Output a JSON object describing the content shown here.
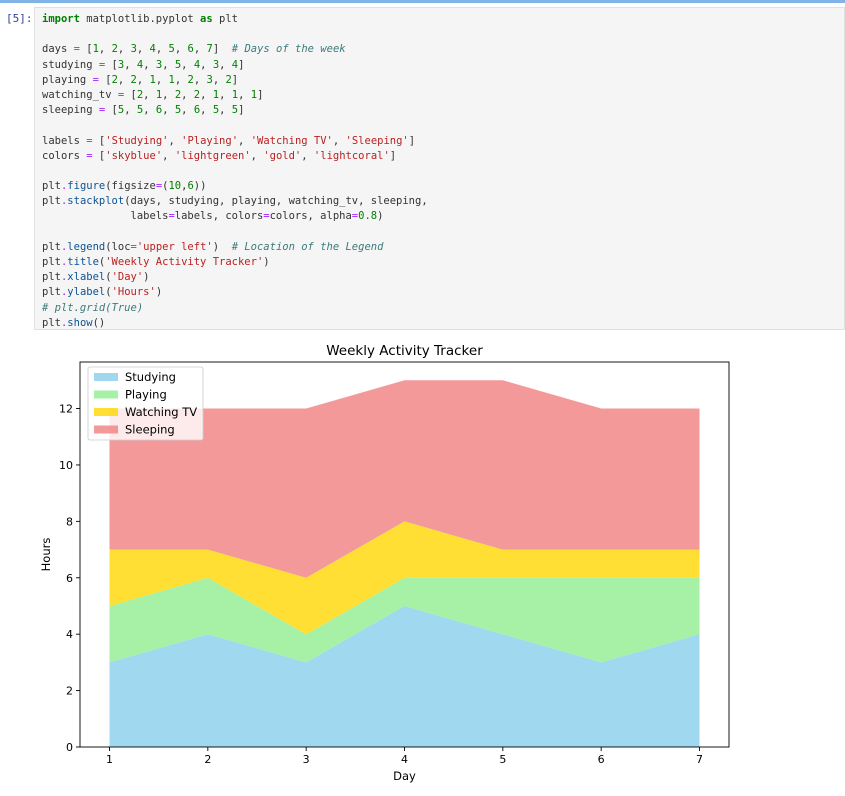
{
  "cell": {
    "prompt": "[5]:",
    "code_lines": [
      [
        [
          "kw",
          "import"
        ],
        [
          "t",
          " matplotlib.pyplot "
        ],
        [
          "kw",
          "as"
        ],
        [
          "t",
          " plt"
        ]
      ],
      [],
      [
        [
          "t",
          "days "
        ],
        [
          "op",
          "="
        ],
        [
          "t",
          " ["
        ],
        [
          "num",
          "1"
        ],
        [
          "t",
          ", "
        ],
        [
          "num",
          "2"
        ],
        [
          "t",
          ", "
        ],
        [
          "num",
          "3"
        ],
        [
          "t",
          ", "
        ],
        [
          "num",
          "4"
        ],
        [
          "t",
          ", "
        ],
        [
          "num",
          "5"
        ],
        [
          "t",
          ", "
        ],
        [
          "num",
          "6"
        ],
        [
          "t",
          ", "
        ],
        [
          "num",
          "7"
        ],
        [
          "t",
          "]  "
        ],
        [
          "cm",
          "# Days of the week"
        ]
      ],
      [
        [
          "t",
          "studying "
        ],
        [
          "op",
          "="
        ],
        [
          "t",
          " ["
        ],
        [
          "num",
          "3"
        ],
        [
          "t",
          ", "
        ],
        [
          "num",
          "4"
        ],
        [
          "t",
          ", "
        ],
        [
          "num",
          "3"
        ],
        [
          "t",
          ", "
        ],
        [
          "num",
          "5"
        ],
        [
          "t",
          ", "
        ],
        [
          "num",
          "4"
        ],
        [
          "t",
          ", "
        ],
        [
          "num",
          "3"
        ],
        [
          "t",
          ", "
        ],
        [
          "num",
          "4"
        ],
        [
          "t",
          "]"
        ]
      ],
      [
        [
          "t",
          "playing "
        ],
        [
          "op",
          "="
        ],
        [
          "t",
          " ["
        ],
        [
          "num",
          "2"
        ],
        [
          "t",
          ", "
        ],
        [
          "num",
          "2"
        ],
        [
          "t",
          ", "
        ],
        [
          "num",
          "1"
        ],
        [
          "t",
          ", "
        ],
        [
          "num",
          "1"
        ],
        [
          "t",
          ", "
        ],
        [
          "num",
          "2"
        ],
        [
          "t",
          ", "
        ],
        [
          "num",
          "3"
        ],
        [
          "t",
          ", "
        ],
        [
          "num",
          "2"
        ],
        [
          "t",
          "]"
        ]
      ],
      [
        [
          "t",
          "watching_tv "
        ],
        [
          "op",
          "="
        ],
        [
          "t",
          " ["
        ],
        [
          "num",
          "2"
        ],
        [
          "t",
          ", "
        ],
        [
          "num",
          "1"
        ],
        [
          "t",
          ", "
        ],
        [
          "num",
          "2"
        ],
        [
          "t",
          ", "
        ],
        [
          "num",
          "2"
        ],
        [
          "t",
          ", "
        ],
        [
          "num",
          "1"
        ],
        [
          "t",
          ", "
        ],
        [
          "num",
          "1"
        ],
        [
          "t",
          ", "
        ],
        [
          "num",
          "1"
        ],
        [
          "t",
          "]"
        ]
      ],
      [
        [
          "t",
          "sleeping "
        ],
        [
          "op",
          "="
        ],
        [
          "t",
          " ["
        ],
        [
          "num",
          "5"
        ],
        [
          "t",
          ", "
        ],
        [
          "num",
          "5"
        ],
        [
          "t",
          ", "
        ],
        [
          "num",
          "6"
        ],
        [
          "t",
          ", "
        ],
        [
          "num",
          "5"
        ],
        [
          "t",
          ", "
        ],
        [
          "num",
          "6"
        ],
        [
          "t",
          ", "
        ],
        [
          "num",
          "5"
        ],
        [
          "t",
          ", "
        ],
        [
          "num",
          "5"
        ],
        [
          "t",
          "]"
        ]
      ],
      [],
      [
        [
          "t",
          "labels "
        ],
        [
          "op",
          "="
        ],
        [
          "t",
          " ["
        ],
        [
          "str",
          "'Studying'"
        ],
        [
          "t",
          ", "
        ],
        [
          "str",
          "'Playing'"
        ],
        [
          "t",
          ", "
        ],
        [
          "str",
          "'Watching TV'"
        ],
        [
          "t",
          ", "
        ],
        [
          "str",
          "'Sleeping'"
        ],
        [
          "t",
          "]"
        ]
      ],
      [
        [
          "t",
          "colors "
        ],
        [
          "op",
          "="
        ],
        [
          "t",
          " ["
        ],
        [
          "str",
          "'skyblue'"
        ],
        [
          "t",
          ", "
        ],
        [
          "str",
          "'lightgreen'"
        ],
        [
          "t",
          ", "
        ],
        [
          "str",
          "'gold'"
        ],
        [
          "t",
          ", "
        ],
        [
          "str",
          "'lightcoral'"
        ],
        [
          "t",
          "]"
        ]
      ],
      [],
      [
        [
          "t",
          "plt"
        ],
        [
          "op",
          "."
        ],
        [
          "fn",
          "figure"
        ],
        [
          "t",
          "(figsize"
        ],
        [
          "op",
          "="
        ],
        [
          "t",
          "("
        ],
        [
          "num",
          "10"
        ],
        [
          "t",
          ","
        ],
        [
          "num",
          "6"
        ],
        [
          "t",
          "))"
        ]
      ],
      [
        [
          "t",
          "plt"
        ],
        [
          "op",
          "."
        ],
        [
          "fn",
          "stackplot"
        ],
        [
          "t",
          "(days, studying, playing, watching_tv, sleeping,"
        ]
      ],
      [
        [
          "t",
          "              labels"
        ],
        [
          "op",
          "="
        ],
        [
          "t",
          "labels, colors"
        ],
        [
          "op",
          "="
        ],
        [
          "t",
          "colors, alpha"
        ],
        [
          "op",
          "="
        ],
        [
          "num",
          "0.8"
        ],
        [
          "t",
          ")"
        ]
      ],
      [],
      [
        [
          "t",
          "plt"
        ],
        [
          "op",
          "."
        ],
        [
          "fn",
          "legend"
        ],
        [
          "t",
          "(loc"
        ],
        [
          "op",
          "="
        ],
        [
          "str",
          "'upper left'"
        ],
        [
          "t",
          ")  "
        ],
        [
          "cm",
          "# Location of the Legend"
        ]
      ],
      [
        [
          "t",
          "plt"
        ],
        [
          "op",
          "."
        ],
        [
          "fn",
          "title"
        ],
        [
          "t",
          "("
        ],
        [
          "str",
          "'Weekly Activity Tracker'"
        ],
        [
          "t",
          ")"
        ]
      ],
      [
        [
          "t",
          "plt"
        ],
        [
          "op",
          "."
        ],
        [
          "fn",
          "xlabel"
        ],
        [
          "t",
          "("
        ],
        [
          "str",
          "'Day'"
        ],
        [
          "t",
          ")"
        ]
      ],
      [
        [
          "t",
          "plt"
        ],
        [
          "op",
          "."
        ],
        [
          "fn",
          "ylabel"
        ],
        [
          "t",
          "("
        ],
        [
          "str",
          "'Hours'"
        ],
        [
          "t",
          ")"
        ]
      ],
      [
        [
          "cm",
          "# plt.grid(True)"
        ]
      ],
      [
        [
          "t",
          "plt"
        ],
        [
          "op",
          "."
        ],
        [
          "fn",
          "show"
        ],
        [
          "t",
          "()"
        ]
      ]
    ]
  },
  "chart_data": {
    "type": "area",
    "stacked": true,
    "title": "Weekly Activity Tracker",
    "xlabel": "Day",
    "ylabel": "Hours",
    "x": [
      1,
      2,
      3,
      4,
      5,
      6,
      7
    ],
    "xticks": [
      1,
      2,
      3,
      4,
      5,
      6,
      7
    ],
    "yticks": [
      0,
      2,
      4,
      6,
      8,
      10,
      12
    ],
    "xlim": [
      0.7,
      7.3
    ],
    "ylim": [
      0,
      13.65
    ],
    "grid": false,
    "legend_position": "upper left",
    "series": [
      {
        "name": "Studying",
        "values": [
          3,
          4,
          3,
          5,
          4,
          3,
          4
        ],
        "color": "#87ceeb"
      },
      {
        "name": "Playing",
        "values": [
          2,
          2,
          1,
          1,
          2,
          3,
          2
        ],
        "color": "#90ee90"
      },
      {
        "name": "Watching TV",
        "values": [
          2,
          1,
          2,
          2,
          1,
          1,
          1
        ],
        "color": "#ffd700"
      },
      {
        "name": "Sleeping",
        "values": [
          5,
          5,
          6,
          5,
          6,
          5,
          5
        ],
        "color": "#f08080"
      }
    ],
    "alpha": 0.8
  }
}
